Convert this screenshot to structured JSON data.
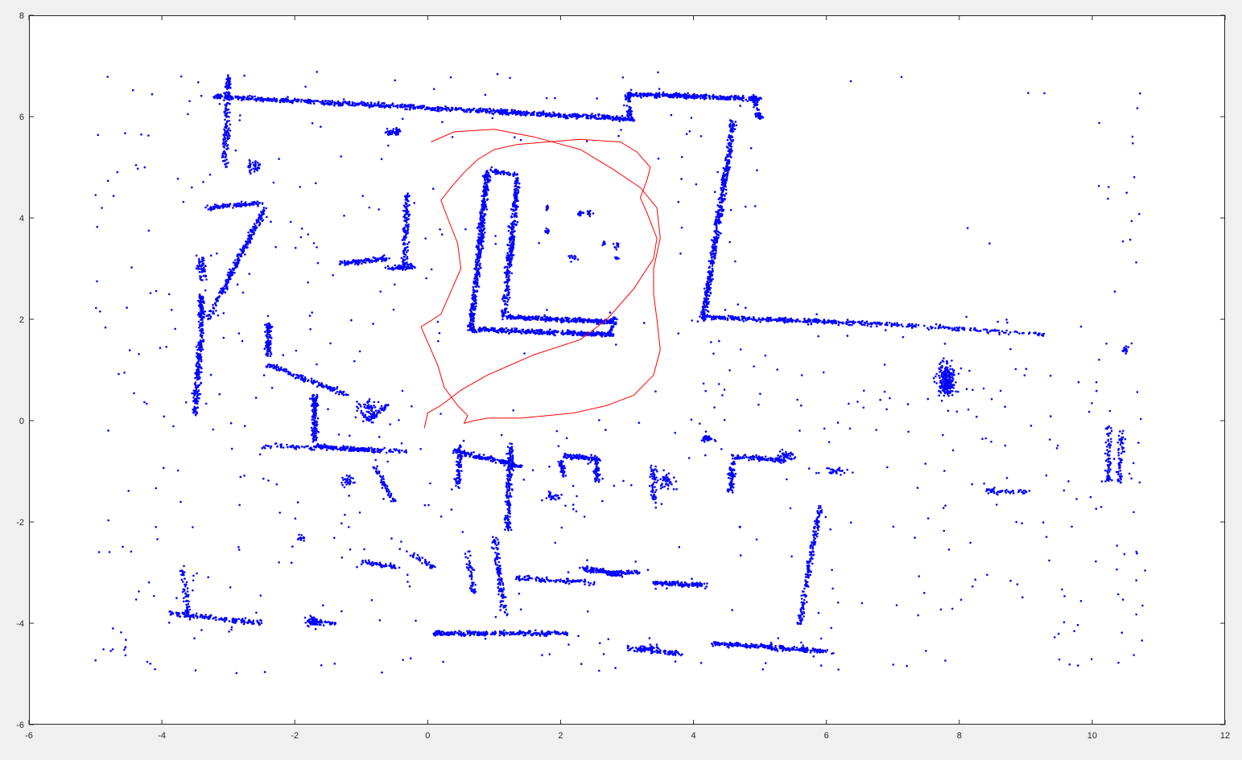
{
  "chart_data": {
    "type": "scatter",
    "title": "",
    "xlabel": "",
    "ylabel": "",
    "xlim": [
      -6,
      12
    ],
    "ylim": [
      -6,
      8
    ],
    "xticks": [
      "-6",
      "-4",
      "-2",
      "0",
      "2",
      "4",
      "6",
      "8",
      "10",
      "12"
    ],
    "yticks": [
      "-6",
      "-4",
      "-2",
      "0",
      "2",
      "4",
      "6",
      "8"
    ],
    "grid": false,
    "colors": {
      "points": "#0000ff",
      "path": "#ff0000",
      "axes_bg": "#ffffff",
      "figure_bg": "#f0f0f0"
    },
    "series": [
      {
        "kind": "points",
        "color": "#0000ff",
        "segments": [
          {
            "from": [
              -3.2,
              6.4
            ],
            "to": [
              3.1,
              5.95
            ],
            "n": 900
          },
          {
            "from": [
              3.0,
              6.45
            ],
            "to": [
              5.0,
              6.35
            ],
            "n": 350
          },
          {
            "from": [
              3.0,
              6.45
            ],
            "to": [
              3.05,
              5.95
            ],
            "n": 60
          },
          {
            "from": [
              4.9,
              6.4
            ],
            "to": [
              5.0,
              5.95
            ],
            "n": 60
          },
          {
            "from": [
              4.6,
              5.9
            ],
            "to": [
              4.15,
              2.0
            ],
            "n": 500
          },
          {
            "from": [
              4.2,
              2.05
            ],
            "to": [
              7.0,
              1.9
            ],
            "n": 300
          },
          {
            "from": [
              7.0,
              1.9
            ],
            "to": [
              9.3,
              1.7
            ],
            "n": 130
          },
          {
            "from": [
              0.9,
              4.9
            ],
            "to": [
              0.65,
              1.8
            ],
            "n": 450
          },
          {
            "from": [
              1.35,
              4.8
            ],
            "to": [
              1.15,
              2.05
            ],
            "n": 350
          },
          {
            "from": [
              0.65,
              1.8
            ],
            "to": [
              2.8,
              1.7
            ],
            "n": 350
          },
          {
            "from": [
              1.15,
              2.05
            ],
            "to": [
              2.8,
              1.95
            ],
            "n": 300
          },
          {
            "from": [
              2.8,
              2.05
            ],
            "to": [
              2.75,
              1.7
            ],
            "n": 40
          },
          {
            "from": [
              0.9,
              4.95
            ],
            "to": [
              1.35,
              4.85
            ],
            "n": 40
          },
          {
            "from": [
              -3.0,
              6.8
            ],
            "to": [
              -3.05,
              5.0
            ],
            "n": 180
          },
          {
            "from": [
              -2.45,
              4.2
            ],
            "to": [
              -3.3,
              2.0
            ],
            "n": 250
          },
          {
            "from": [
              -3.3,
              4.2
            ],
            "to": [
              -2.5,
              4.3
            ],
            "n": 120
          },
          {
            "from": [
              -3.4,
              2.5
            ],
            "to": [
              -3.4,
              1.9
            ],
            "n": 80
          },
          {
            "from": [
              -3.4,
              1.9
            ],
            "to": [
              -3.5,
              0.1
            ],
            "n": 200
          },
          {
            "from": [
              -2.4,
              1.9
            ],
            "to": [
              -2.4,
              1.3
            ],
            "n": 100
          },
          {
            "from": [
              -2.4,
              1.1
            ],
            "to": [
              -1.2,
              0.5
            ],
            "n": 150
          },
          {
            "from": [
              -1.7,
              0.5
            ],
            "to": [
              -1.7,
              -0.4
            ],
            "n": 140
          },
          {
            "from": [
              -1.7,
              -0.5
            ],
            "to": [
              -0.7,
              -0.6
            ],
            "n": 150
          },
          {
            "from": [
              -1.3,
              3.1
            ],
            "to": [
              -0.6,
              3.2
            ],
            "n": 120
          },
          {
            "from": [
              -0.3,
              4.5
            ],
            "to": [
              -0.35,
              3.0
            ],
            "n": 140
          },
          {
            "from": [
              -0.6,
              3.0
            ],
            "to": [
              -0.2,
              3.05
            ],
            "n": 60
          },
          {
            "from": [
              -0.6,
              0.3
            ],
            "to": [
              -0.9,
              0.0
            ],
            "n": 60
          },
          {
            "from": [
              0.4,
              -0.6
            ],
            "to": [
              1.4,
              -0.9
            ],
            "n": 180
          },
          {
            "from": [
              0.5,
              -0.5
            ],
            "to": [
              0.45,
              -1.3
            ],
            "n": 80
          },
          {
            "from": [
              1.25,
              -0.5
            ],
            "to": [
              1.2,
              -2.2
            ],
            "n": 180
          },
          {
            "from": [
              2.05,
              -0.7
            ],
            "to": [
              2.55,
              -0.75
            ],
            "n": 100
          },
          {
            "from": [
              2.55,
              -0.75
            ],
            "to": [
              2.55,
              -1.2
            ],
            "n": 60
          },
          {
            "from": [
              2.0,
              -0.8
            ],
            "to": [
              2.05,
              -1.1
            ],
            "n": 40
          },
          {
            "from": [
              1.0,
              -2.3
            ],
            "to": [
              1.15,
              -3.8
            ],
            "n": 120
          },
          {
            "from": [
              0.6,
              -2.6
            ],
            "to": [
              0.7,
              -3.4
            ],
            "n": 50
          },
          {
            "from": [
              0.1,
              -4.2
            ],
            "to": [
              2.1,
              -4.2
            ],
            "n": 260
          },
          {
            "from": [
              2.3,
              -2.9
            ],
            "to": [
              2.9,
              -3.05
            ],
            "n": 100
          },
          {
            "from": [
              2.7,
              -3.0
            ],
            "to": [
              3.2,
              -3.0
            ],
            "n": 70
          },
          {
            "from": [
              1.3,
              -3.1
            ],
            "to": [
              2.5,
              -3.2
            ],
            "n": 100
          },
          {
            "from": [
              3.4,
              -3.2
            ],
            "to": [
              4.2,
              -3.25
            ],
            "n": 140
          },
          {
            "from": [
              3.0,
              -4.5
            ],
            "to": [
              3.8,
              -4.6
            ],
            "n": 80
          },
          {
            "from": [
              4.3,
              -4.4
            ],
            "to": [
              6.0,
              -4.55
            ],
            "n": 240
          },
          {
            "from": [
              5.9,
              -1.7
            ],
            "to": [
              5.6,
              -4.0
            ],
            "n": 180
          },
          {
            "from": [
              4.6,
              -0.7
            ],
            "to": [
              5.4,
              -0.8
            ],
            "n": 100
          },
          {
            "from": [
              4.6,
              -0.8
            ],
            "to": [
              4.55,
              -1.4
            ],
            "n": 70
          },
          {
            "from": [
              3.4,
              -0.9
            ],
            "to": [
              3.4,
              -1.6
            ],
            "n": 60
          },
          {
            "from": [
              -3.7,
              -2.9
            ],
            "to": [
              -3.6,
              -3.9
            ],
            "n": 60
          },
          {
            "from": [
              -3.9,
              -3.8
            ],
            "to": [
              -2.5,
              -4.0
            ],
            "n": 140
          },
          {
            "from": [
              -1.8,
              -3.9
            ],
            "to": [
              -1.4,
              -4.0
            ],
            "n": 40
          },
          {
            "from": [
              -1.0,
              -2.8
            ],
            "to": [
              -0.4,
              -2.9
            ],
            "n": 60
          },
          {
            "from": [
              -0.3,
              -2.6
            ],
            "to": [
              0.1,
              -2.9
            ],
            "n": 40
          },
          {
            "from": [
              -2.5,
              -0.5
            ],
            "to": [
              -0.3,
              -0.6
            ],
            "n": 110
          },
          {
            "from": [
              -0.8,
              -0.9
            ],
            "to": [
              -0.5,
              -1.6
            ],
            "n": 60
          },
          {
            "from": [
              10.25,
              -0.1
            ],
            "to": [
              10.25,
              -1.2
            ],
            "n": 70
          },
          {
            "from": [
              10.45,
              -0.2
            ],
            "to": [
              10.4,
              -1.3
            ],
            "n": 60
          },
          {
            "from": [
              8.6,
              -1.4
            ],
            "to": [
              9.1,
              -1.4
            ],
            "n": 30
          }
        ],
        "clusters": [
          {
            "center": [
              7.8,
              0.8
            ],
            "rx": 0.2,
            "ry": 0.5,
            "n": 220
          },
          {
            "center": [
              -0.5,
              5.7
            ],
            "rx": 0.15,
            "ry": 0.1,
            "n": 40
          },
          {
            "center": [
              -2.6,
              5.0
            ],
            "rx": 0.15,
            "ry": 0.2,
            "n": 40
          },
          {
            "center": [
              4.2,
              -0.35
            ],
            "rx": 0.15,
            "ry": 0.1,
            "n": 40
          },
          {
            "center": [
              5.4,
              -0.7
            ],
            "rx": 0.2,
            "ry": 0.15,
            "n": 40
          },
          {
            "center": [
              -0.9,
              0.2
            ],
            "rx": 0.25,
            "ry": 0.3,
            "n": 60
          },
          {
            "center": [
              -3.4,
              3.0
            ],
            "rx": 0.12,
            "ry": 0.4,
            "n": 50
          },
          {
            "center": [
              1.8,
              4.2
            ],
            "rx": 0.05,
            "ry": 0.08,
            "n": 10
          },
          {
            "center": [
              2.3,
              4.1
            ],
            "rx": 0.08,
            "ry": 0.12,
            "n": 12
          },
          {
            "center": [
              2.45,
              4.1
            ],
            "rx": 0.08,
            "ry": 0.08,
            "n": 12
          },
          {
            "center": [
              1.8,
              3.75
            ],
            "rx": 0.06,
            "ry": 0.08,
            "n": 12
          },
          {
            "center": [
              2.65,
              3.5
            ],
            "rx": 0.05,
            "ry": 0.05,
            "n": 8
          },
          {
            "center": [
              2.85,
              3.45
            ],
            "rx": 0.08,
            "ry": 0.08,
            "n": 12
          },
          {
            "center": [
              2.2,
              3.2
            ],
            "rx": 0.1,
            "ry": 0.1,
            "n": 12
          },
          {
            "center": [
              2.85,
              3.2
            ],
            "rx": 0.05,
            "ry": 0.05,
            "n": 6
          },
          {
            "center": [
              -1.2,
              -1.2
            ],
            "rx": 0.15,
            "ry": 0.15,
            "n": 30
          },
          {
            "center": [
              1.9,
              -1.5
            ],
            "rx": 0.15,
            "ry": 0.1,
            "n": 25
          },
          {
            "center": [
              3.6,
              -1.2
            ],
            "rx": 0.15,
            "ry": 0.25,
            "n": 40
          },
          {
            "center": [
              8.5,
              -1.4
            ],
            "rx": 0.2,
            "ry": 0.1,
            "n": 20
          },
          {
            "center": [
              10.5,
              1.4
            ],
            "rx": 0.08,
            "ry": 0.15,
            "n": 15
          },
          {
            "center": [
              6.2,
              -1.0
            ],
            "rx": 0.3,
            "ry": 0.1,
            "n": 30
          },
          {
            "center": [
              -1.9,
              -2.3
            ],
            "rx": 0.1,
            "ry": 0.1,
            "n": 12
          },
          {
            "center": [
              -1.7,
              -4.0
            ],
            "rx": 0.2,
            "ry": 0.1,
            "n": 30
          },
          {
            "center": [
              3.3,
              -4.5
            ],
            "rx": 0.3,
            "ry": 0.1,
            "n": 40
          }
        ],
        "scattered_bounds": {
          "x": [
            -5.0,
            10.8
          ],
          "y": [
            -5.0,
            6.9
          ]
        },
        "scattered_n": 800
      },
      {
        "kind": "path",
        "color": "#ff0000",
        "x": [
          -0.05,
          0.0,
          0.2,
          0.5,
          0.9,
          1.6,
          2.3,
          2.7,
          3.1,
          3.4,
          3.45,
          3.3,
          3.2,
          3.3,
          3.35,
          3.15,
          2.9,
          2.3,
          1.8,
          1.35,
          1.0,
          0.75,
          0.55,
          0.35,
          0.2,
          0.3,
          0.45,
          0.5,
          0.35,
          0.2,
          -0.1,
          0.0,
          0.15,
          0.25,
          0.45,
          0.6,
          0.55,
          0.7,
          0.9,
          1.4,
          1.8,
          2.2,
          2.7,
          3.1,
          3.4,
          3.5,
          3.45,
          3.4,
          3.4,
          3.5,
          3.45,
          3.2,
          2.8,
          2.3,
          1.6,
          1.0,
          0.4,
          0.05
        ],
        "y": [
          -0.15,
          0.15,
          0.3,
          0.6,
          0.9,
          1.3,
          1.6,
          2.0,
          2.6,
          3.2,
          3.6,
          4.1,
          4.4,
          4.75,
          5.0,
          5.3,
          5.5,
          5.55,
          5.5,
          5.45,
          5.35,
          5.15,
          4.9,
          4.6,
          4.35,
          4.0,
          3.5,
          3.0,
          2.55,
          2.1,
          1.85,
          1.55,
          1.1,
          0.65,
          0.3,
          0.1,
          -0.05,
          0.0,
          0.05,
          0.05,
          0.1,
          0.15,
          0.3,
          0.5,
          0.9,
          1.4,
          2.0,
          2.5,
          3.0,
          3.6,
          4.2,
          4.6,
          4.95,
          5.35,
          5.6,
          5.75,
          5.7,
          5.5
        ]
      }
    ]
  }
}
